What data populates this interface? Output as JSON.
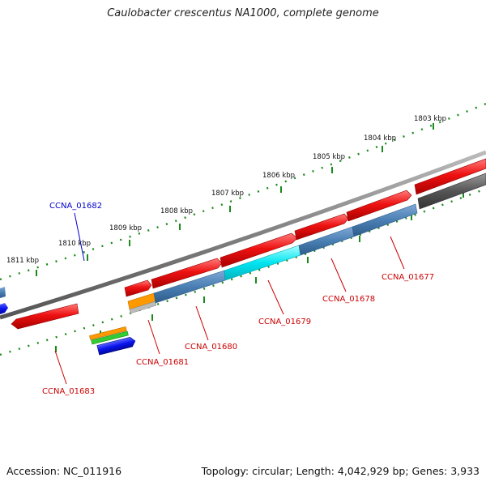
{
  "title": "Caulobacter crescentus NA1000, complete genome",
  "footer": {
    "accession": "Accession: NC_011916",
    "summary": "Topology: circular; Length: 4,042,929 bp; Genes: 3,933"
  },
  "scale_labels": [
    "1811 kbp",
    "1810 kbp",
    "1809 kbp",
    "1808 kbp",
    "1807 kbp",
    "1806 kbp",
    "1805 kbp",
    "1804 kbp",
    "1803 kbp"
  ],
  "gene_labels": [
    "CCNA_01682",
    "CCNA_01683",
    "CCNA_01681",
    "CCNA_01680",
    "CCNA_01679",
    "CCNA_01678",
    "CCNA_01677"
  ],
  "colors": {
    "backbone": "#808080",
    "gene_red": "#ee1111",
    "cds_steelblue": "#4a7fb3",
    "cds_cyan": "#00e5f0",
    "gene_blue": "#0a14ee",
    "orange": "#ff9900",
    "green": "#33cc33",
    "dark_gray": "#555555",
    "ticks": "#1a8a1a",
    "label_red": "#cc0000",
    "label_blue": "#0000cc"
  }
}
